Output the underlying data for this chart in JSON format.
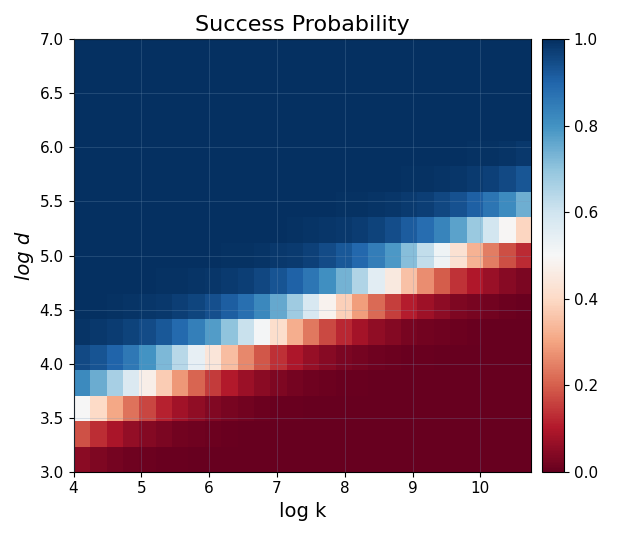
{
  "title": "Success Probability",
  "xlabel": "log k",
  "ylabel": "log d",
  "logk_min": 4.0,
  "logk_max": 10.75,
  "logd_min": 3.0,
  "logd_max": 7.0,
  "n_cols": 28,
  "n_rows": 17,
  "cmap": "RdBu",
  "vmin": 0.0,
  "vmax": 1.0,
  "grid_color": "#7799bb",
  "grid_alpha": 0.35,
  "title_fontsize": 16,
  "label_fontsize": 14,
  "tick_fontsize": 11,
  "boundary_slope": 0.375,
  "boundary_intercept": 2.0,
  "sharpness": 6.0
}
